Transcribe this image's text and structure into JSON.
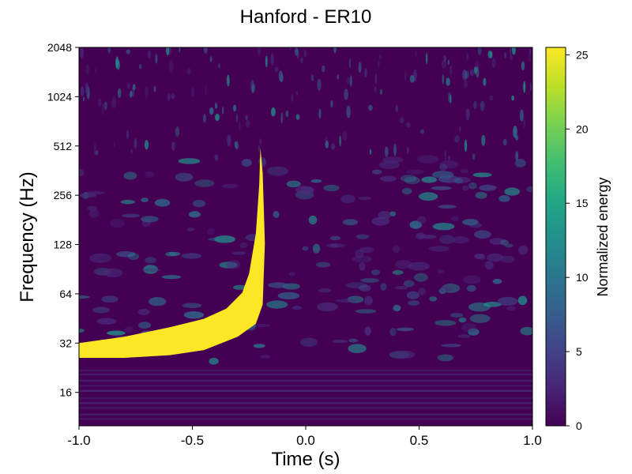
{
  "chart_data": {
    "type": "heatmap",
    "title": "Hanford - ER10",
    "xlabel": "Time (s)",
    "ylabel": "Frequency (Hz)",
    "xlim": [
      -1.0,
      1.0
    ],
    "ylim": [
      10,
      2048
    ],
    "yscale": "log2",
    "x_ticks": [
      {
        "value": -1.0,
        "label": "-1.0"
      },
      {
        "value": -0.5,
        "label": "-0.5"
      },
      {
        "value": 0.0,
        "label": "0.0"
      },
      {
        "value": 0.5,
        "label": "0.5"
      },
      {
        "value": 1.0,
        "label": "1.0"
      }
    ],
    "y_ticks": [
      {
        "value": 16,
        "label": "16"
      },
      {
        "value": 32,
        "label": "32"
      },
      {
        "value": 64,
        "label": "64"
      },
      {
        "value": 128,
        "label": "128"
      },
      {
        "value": 256,
        "label": "256"
      },
      {
        "value": 512,
        "label": "512"
      },
      {
        "value": 1024,
        "label": "1024"
      },
      {
        "value": 2048,
        "label": "2048"
      }
    ],
    "colorbar": {
      "label": "Normalized energy",
      "colormap": "viridis",
      "range": [
        0,
        25.5
      ],
      "ticks": [
        {
          "value": 0,
          "label": "0"
        },
        {
          "value": 5,
          "label": "5"
        },
        {
          "value": 10,
          "label": "10"
        },
        {
          "value": 15,
          "label": "15"
        },
        {
          "value": 20,
          "label": "20"
        },
        {
          "value": 25,
          "label": "25"
        }
      ]
    },
    "chirp_track": {
      "saturated_value": 25.5,
      "upper_edge": [
        {
          "t": -1.0,
          "f": 32
        },
        {
          "t": -0.8,
          "f": 35
        },
        {
          "t": -0.6,
          "f": 40
        },
        {
          "t": -0.45,
          "f": 45
        },
        {
          "t": -0.35,
          "f": 52
        },
        {
          "t": -0.28,
          "f": 65
        },
        {
          "t": -0.25,
          "f": 85
        },
        {
          "t": -0.22,
          "f": 150
        },
        {
          "t": -0.205,
          "f": 300
        },
        {
          "t": -0.2,
          "f": 500
        }
      ],
      "lower_edge": [
        {
          "t": -1.0,
          "f": 26
        },
        {
          "t": -0.8,
          "f": 26
        },
        {
          "t": -0.6,
          "f": 27
        },
        {
          "t": -0.45,
          "f": 29
        },
        {
          "t": -0.3,
          "f": 35
        },
        {
          "t": -0.22,
          "f": 42
        },
        {
          "t": -0.19,
          "f": 55
        },
        {
          "t": -0.18,
          "f": 130
        },
        {
          "t": -0.19,
          "f": 350
        },
        {
          "t": -0.2,
          "f": 500
        }
      ]
    }
  }
}
